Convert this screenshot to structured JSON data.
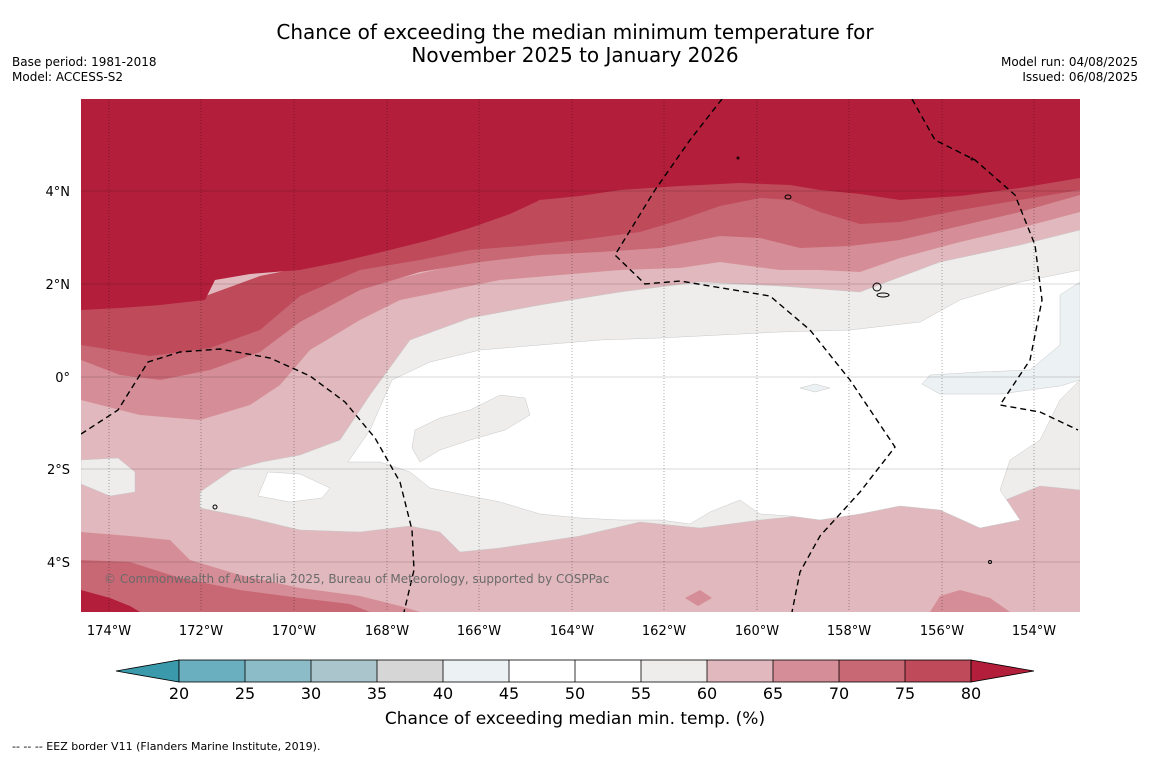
{
  "title_line1": "Chance of exceeding the median minimum temperature for",
  "title_line2": "November 2025 to January 2026",
  "base_period": "Base period: 1981-2018",
  "model": "Model: ACCESS-S2",
  "model_run": "Model run: 04/08/2025",
  "issued": "Issued: 06/08/2025",
  "copyright": "© Commonwealth of Australia 2025, Bureau of Meteorology, supported by COSPPac",
  "footnote": "--  --  -- EEZ border V11 (Flanders Marine Institute, 2019).",
  "map": {
    "lon_ticks": [
      "174°W",
      "172°W",
      "170°W",
      "168°W",
      "166°W",
      "164°W",
      "162°W",
      "160°W",
      "158°W",
      "156°W",
      "154°W"
    ],
    "lat_ticks": [
      "4°N",
      "2°N",
      "0°",
      "2°S",
      "4°S"
    ]
  },
  "colorbar": {
    "title": "Chance of exceeding median min. temp. (%)",
    "ticks": [
      "20",
      "25",
      "30",
      "35",
      "40",
      "45",
      "50",
      "55",
      "60",
      "65",
      "70",
      "75",
      "80"
    ],
    "colors": {
      "below_20": "#3a9aac",
      "20-25": "#6aafc0",
      "25-30": "#8cbcc7",
      "30-35": "#aac6cc",
      "35-40": "#d6d6d6",
      "40-45": "#ecf1f3",
      "45-50": "#ffffff",
      "50-55": "#ffffff",
      "55-60": "#efedec",
      "60-65": "#e1b8bd",
      "65-70": "#d58e97",
      "70-75": "#c96875",
      "75-80": "#bf4a5a",
      "above_80": "#b31e3a"
    }
  }
}
